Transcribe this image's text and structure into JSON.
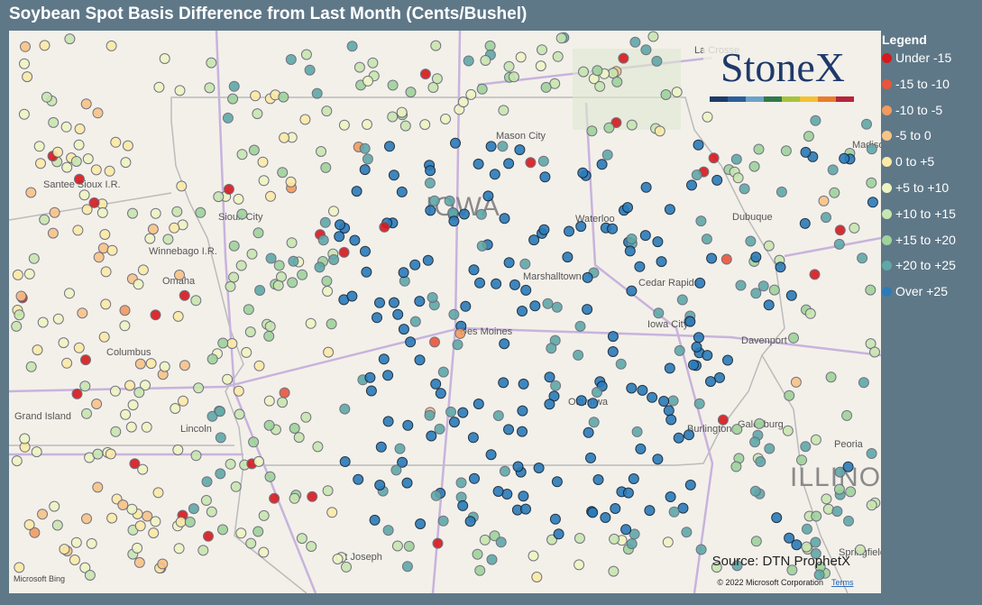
{
  "title": "Soybean Spot Basis Difference from Last Month (Cents/Bushel)",
  "legend": {
    "title": "Legend",
    "items": [
      {
        "label": "Under -15",
        "color": "#d7191c"
      },
      {
        "label": "-15 to -10",
        "color": "#e8553a"
      },
      {
        "label": "-10 to -5",
        "color": "#f29a5f"
      },
      {
        "label": "-5 to 0",
        "color": "#f8c387"
      },
      {
        "label": "0 to +5",
        "color": "#fbeaa6"
      },
      {
        "label": "+5 to +10",
        "color": "#eef5c2"
      },
      {
        "label": "+10 to +15",
        "color": "#c8e6b0"
      },
      {
        "label": "+15 to +20",
        "color": "#9fd39b"
      },
      {
        "label": "+20 to +25",
        "color": "#5fa8a8"
      },
      {
        "label": "Over +25",
        "color": "#2b7bba"
      }
    ]
  },
  "map": {
    "places": [
      "Sioux City",
      "Winnebago I.R.",
      "Omaha",
      "Columbus",
      "Grand Island",
      "Lincoln",
      "St Joseph",
      "Santee Sioux I.R.",
      "Mason City",
      "Waterloo",
      "Dubuque",
      "Marshalltown",
      "Cedar Rapids",
      "Iowa City",
      "Des Moines",
      "Davenport",
      "Ottumwa",
      "Burlington",
      "Galesburg",
      "Peoria",
      "La Crosse",
      "Madison",
      "Springfield"
    ],
    "states": [
      "IOWA",
      "ILLINO"
    ]
  },
  "logo": "StoneX",
  "source": "Source: DTN ProphetX",
  "copyright": "© 2022 Microsoft Corporation",
  "terms": "Terms",
  "attribution": "Microsoft Bing"
}
